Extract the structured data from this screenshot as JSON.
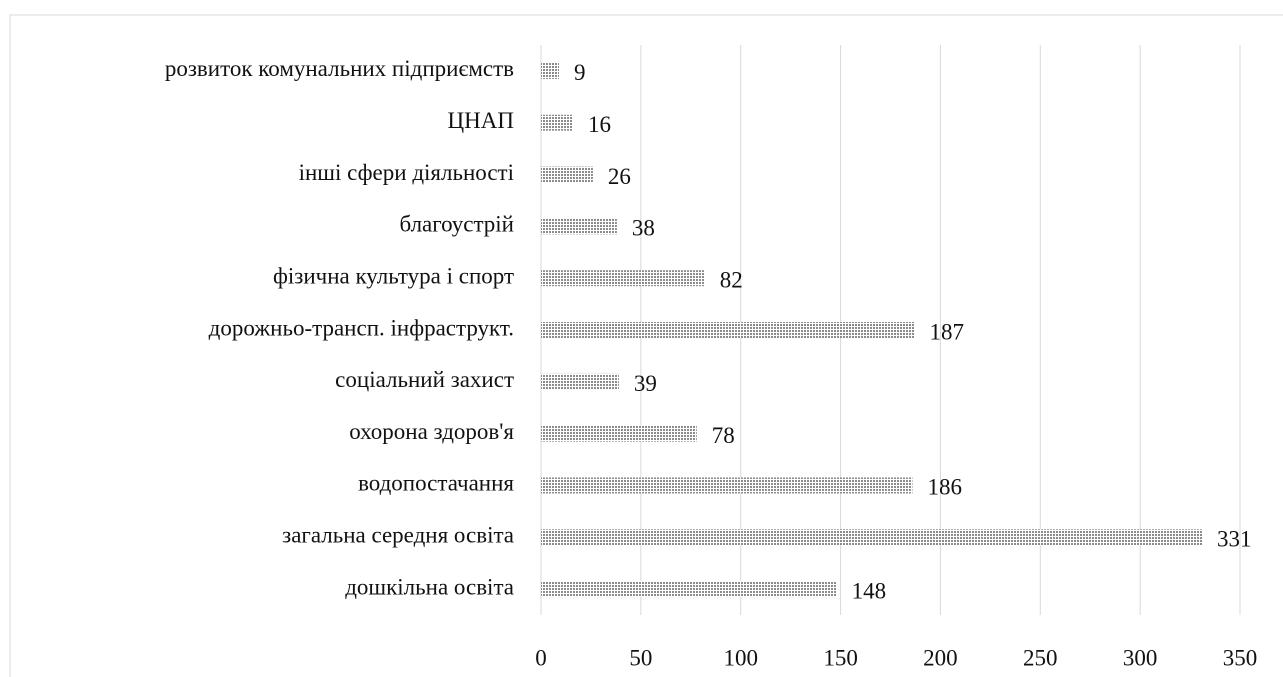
{
  "chart_data": {
    "type": "bar",
    "orientation": "horizontal",
    "categories": [
      "розвиток комунальних підприємств",
      "ЦНАП",
      "інші сфери діяльності",
      "благоустрій",
      "фізична культура і спорт",
      "дорожньо-трансп. інфраструкт.",
      "соціальний захист",
      "охорона здоров'я",
      "водопостачання",
      "загальна середня освіта",
      "дошкільна освіта"
    ],
    "values": [
      9,
      16,
      26,
      38,
      82,
      187,
      39,
      78,
      186,
      331,
      148
    ],
    "color": "#8c8c8c",
    "xlim": [
      0,
      350
    ],
    "xticks": [
      0,
      50,
      100,
      150,
      200,
      250,
      300,
      350
    ],
    "grid": true
  }
}
